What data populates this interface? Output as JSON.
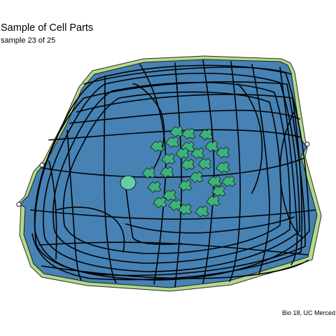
{
  "title": "Sample of Cell Parts",
  "subtitle": "sample 23 of 25",
  "caption": "Bio 18, UC Merced",
  "colors": {
    "background": "#ffffff",
    "cell_wall": "#b3d98a",
    "cytoplasm": "#4682b4",
    "chloroplast": "#3cb37a",
    "vacuole": "#66cdaa",
    "strands": "#000000"
  }
}
